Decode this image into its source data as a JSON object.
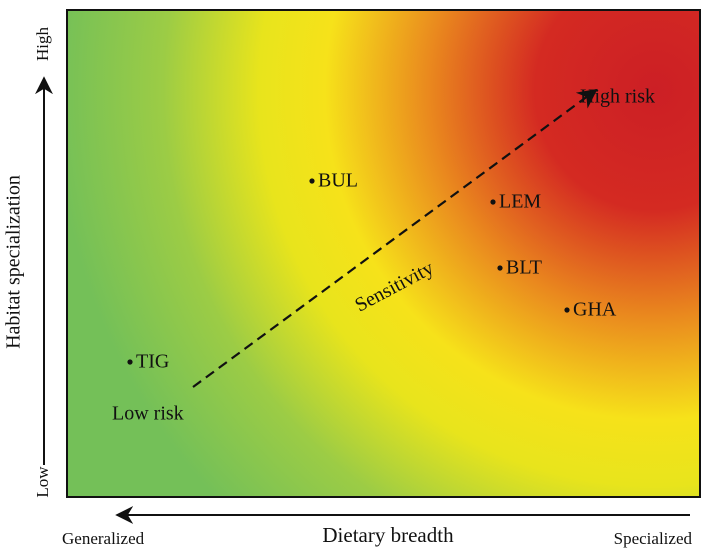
{
  "x_axis": {
    "label": "Dietary breadth",
    "left_label": "Generalized",
    "right_label": "Specialized"
  },
  "y_axis": {
    "label": "Habitat specialization",
    "bottom_label": "Low",
    "top_label": "High"
  },
  "annotations": {
    "high": "High risk",
    "low": "Low risk",
    "arrow": "Sensitivity"
  },
  "points": [
    "BUL",
    "LEM",
    "BLT",
    "GHA",
    "TIG"
  ]
}
